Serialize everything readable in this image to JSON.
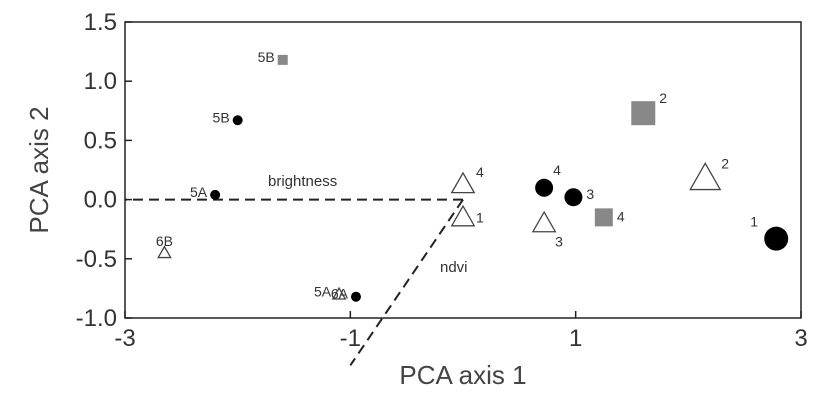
{
  "chart_data": {
    "type": "scatter",
    "title": "",
    "xlabel": "PCA axis 1",
    "ylabel": "PCA axis 2",
    "xlim": [
      -3,
      3
    ],
    "ylim": [
      -1.0,
      1.5
    ],
    "x_ticks": [
      "-3",
      "-1",
      "1",
      "3"
    ],
    "x_tick_values": [
      -3,
      -1,
      1,
      3
    ],
    "y_ticks": [
      "1.5",
      "1.0",
      "0.5",
      "0.0",
      "-0.5",
      "-1.0"
    ],
    "y_tick_values": [
      1.5,
      1.0,
      0.5,
      0.0,
      -0.5,
      -1.0
    ],
    "grid": false,
    "legend": "none",
    "colors": {
      "circle": "#000000",
      "square": "#888888",
      "triangle": "#ffffff",
      "stroke": "#444444"
    },
    "points": [
      {
        "label": "5B",
        "x": -1.6,
        "y": 1.18,
        "marker": "square",
        "size": "small"
      },
      {
        "label": "5B",
        "x": -2.0,
        "y": 0.67,
        "marker": "circle",
        "size": "small"
      },
      {
        "label": "5A",
        "x": -2.2,
        "y": 0.04,
        "marker": "circle",
        "size": "small"
      },
      {
        "label": "6B",
        "x": -2.65,
        "y": -0.45,
        "marker": "triangle",
        "size": "small"
      },
      {
        "label": "5A",
        "x": -1.1,
        "y": -0.8,
        "marker": "triangle",
        "size": "small"
      },
      {
        "label": "6A",
        "x": -0.95,
        "y": -0.82,
        "marker": "circle",
        "size": "small"
      },
      {
        "label": "4",
        "x": 0.0,
        "y": 0.13,
        "marker": "triangle",
        "size": "medium"
      },
      {
        "label": "1",
        "x": 0.0,
        "y": -0.15,
        "marker": "triangle",
        "size": "medium"
      },
      {
        "label": "4",
        "x": 0.72,
        "y": 0.1,
        "marker": "circle",
        "size": "medium"
      },
      {
        "label": "3",
        "x": 0.98,
        "y": 0.02,
        "marker": "circle",
        "size": "medium"
      },
      {
        "label": "3",
        "x": 0.72,
        "y": -0.2,
        "marker": "triangle",
        "size": "medium"
      },
      {
        "label": "4",
        "x": 1.25,
        "y": -0.15,
        "marker": "square",
        "size": "medium"
      },
      {
        "label": "2",
        "x": 1.6,
        "y": 0.73,
        "marker": "square",
        "size": "large"
      },
      {
        "label": "2",
        "x": 2.15,
        "y": 0.18,
        "marker": "triangle",
        "size": "large"
      },
      {
        "label": "1",
        "x": 2.78,
        "y": -0.33,
        "marker": "circle",
        "size": "large"
      }
    ],
    "vectors": [
      {
        "label": "brightness",
        "x0": 0.0,
        "y0": 0.0,
        "x1": -3.0,
        "y1": 0.0
      },
      {
        "label": "ndvi",
        "x0": 0.0,
        "y0": 0.0,
        "x1": -1.0,
        "y1": -1.4
      }
    ]
  }
}
